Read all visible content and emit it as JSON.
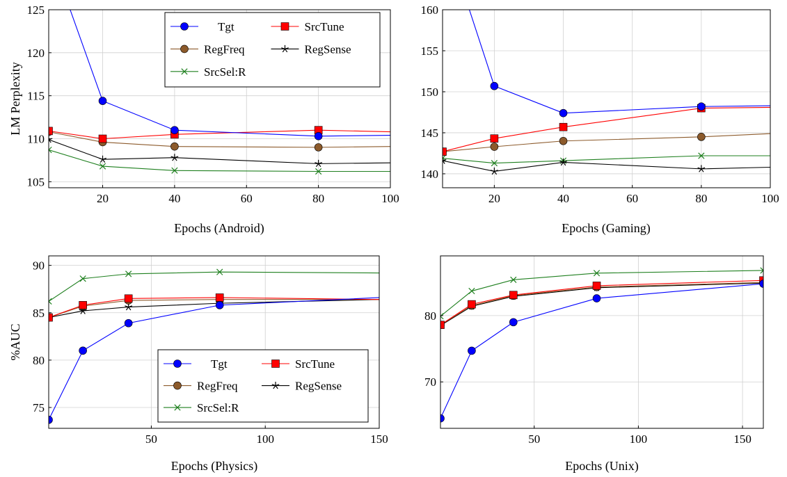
{
  "chart_data": [
    {
      "type": "line",
      "id": "android",
      "xlabel": "Epochs (Android)",
      "ylabel": "LM Perplexity",
      "xlim": [
        5,
        100
      ],
      "ylim": [
        104.3,
        125
      ],
      "xticks": [
        20,
        40,
        60,
        80,
        100
      ],
      "yticks": [
        105,
        110,
        115,
        120,
        125
      ],
      "grid": true,
      "legend": "top-right",
      "series": [
        {
          "name": "Tgt",
          "x": [
            5,
            20,
            40,
            80,
            100
          ],
          "y": [
            132,
            114.4,
            111.0,
            110.3,
            110.4
          ]
        },
        {
          "name": "SrcTune",
          "x": [
            5,
            20,
            40,
            80,
            100
          ],
          "y": [
            110.9,
            110.0,
            110.5,
            111.0,
            110.8
          ]
        },
        {
          "name": "RegFreq",
          "x": [
            5,
            20,
            40,
            80,
            100
          ],
          "y": [
            110.8,
            109.6,
            109.1,
            109.0,
            109.1
          ]
        },
        {
          "name": "RegSense",
          "x": [
            5,
            20,
            40,
            80,
            100
          ],
          "y": [
            109.9,
            107.6,
            107.8,
            107.1,
            107.2
          ]
        },
        {
          "name": "SrcSel:R",
          "x": [
            5,
            20,
            40,
            80,
            100
          ],
          "y": [
            108.7,
            106.8,
            106.3,
            106.2,
            106.2
          ]
        }
      ]
    },
    {
      "type": "line",
      "id": "gaming",
      "xlabel": "Epochs (Gaming)",
      "ylabel": "",
      "xlim": [
        5,
        100
      ],
      "ylim": [
        138.3,
        160
      ],
      "xticks": [
        20,
        40,
        60,
        80,
        100
      ],
      "yticks": [
        140,
        145,
        150,
        155,
        160
      ],
      "grid": true,
      "legend": "none",
      "series": [
        {
          "name": "Tgt",
          "x": [
            5,
            20,
            40,
            80,
            100
          ],
          "y": [
            170,
            150.7,
            147.4,
            148.2,
            148.3
          ]
        },
        {
          "name": "SrcTune",
          "x": [
            5,
            20,
            40,
            80,
            100
          ],
          "y": [
            142.7,
            144.3,
            145.7,
            148.0,
            148.1
          ]
        },
        {
          "name": "RegFreq",
          "x": [
            5,
            20,
            40,
            80,
            100
          ],
          "y": [
            142.7,
            143.3,
            144.0,
            144.5,
            144.9
          ]
        },
        {
          "name": "RegSense",
          "x": [
            5,
            20,
            40,
            80,
            100
          ],
          "y": [
            141.6,
            140.3,
            141.4,
            140.6,
            140.8
          ]
        },
        {
          "name": "SrcSel:R",
          "x": [
            5,
            20,
            40,
            80,
            100
          ],
          "y": [
            141.9,
            141.3,
            141.6,
            142.2,
            142.2
          ]
        }
      ]
    },
    {
      "type": "line",
      "id": "physics",
      "xlabel": "Epochs (Physics)",
      "ylabel": "%AUC",
      "xlim": [
        5,
        150
      ],
      "ylim": [
        72.8,
        91
      ],
      "xticks": [
        50,
        100,
        150
      ],
      "yticks": [
        75,
        80,
        85,
        90
      ],
      "grid": true,
      "legend": "bottom-right",
      "series": [
        {
          "name": "Tgt",
          "x": [
            5,
            20,
            40,
            80,
            150
          ],
          "y": [
            73.7,
            81.0,
            83.9,
            85.8,
            86.6
          ]
        },
        {
          "name": "SrcTune",
          "x": [
            5,
            20,
            40,
            80,
            150
          ],
          "y": [
            84.5,
            85.8,
            86.5,
            86.6,
            86.4
          ]
        },
        {
          "name": "RegFreq",
          "x": [
            5,
            20,
            40,
            80,
            150
          ],
          "y": [
            84.5,
            85.7,
            86.3,
            86.4,
            86.4
          ]
        },
        {
          "name": "RegSense",
          "x": [
            5,
            20,
            40,
            80,
            150
          ],
          "y": [
            84.5,
            85.2,
            85.6,
            86.0,
            86.4
          ]
        },
        {
          "name": "SrcSel:R",
          "x": [
            5,
            20,
            40,
            80,
            150
          ],
          "y": [
            86.2,
            88.6,
            89.1,
            89.3,
            89.2
          ]
        }
      ]
    },
    {
      "type": "line",
      "id": "unix",
      "xlabel": "Epochs (Unix)",
      "ylabel": "",
      "xlim": [
        5,
        160
      ],
      "ylim": [
        63,
        89
      ],
      "xticks": [
        50,
        100,
        150
      ],
      "yticks": [
        70,
        80
      ],
      "grid": true,
      "legend": "none",
      "series": [
        {
          "name": "Tgt",
          "x": [
            5,
            20,
            40,
            80,
            160
          ],
          "y": [
            64.5,
            74.7,
            79.0,
            82.6,
            84.8
          ]
        },
        {
          "name": "SrcTune",
          "x": [
            5,
            20,
            40,
            80,
            160
          ],
          "y": [
            78.6,
            81.7,
            83.1,
            84.5,
            85.3
          ]
        },
        {
          "name": "RegFreq",
          "x": [
            5,
            20,
            40,
            80,
            160
          ],
          "y": [
            78.6,
            81.5,
            83.0,
            84.3,
            85.0
          ]
        },
        {
          "name": "RegSense",
          "x": [
            5,
            20,
            40,
            80,
            160
          ],
          "y": [
            78.5,
            81.4,
            82.9,
            84.2,
            84.9
          ]
        },
        {
          "name": "SrcSel:R",
          "x": [
            5,
            20,
            40,
            80,
            160
          ],
          "y": [
            79.9,
            83.7,
            85.4,
            86.4,
            86.8
          ]
        }
      ]
    }
  ],
  "styles": {
    "Tgt": {
      "color": "#0000ff",
      "marker": "circle"
    },
    "SrcTune": {
      "color": "#ff0000",
      "marker": "square"
    },
    "RegFreq": {
      "color": "#8c5a2b",
      "marker": "circle"
    },
    "RegSense": {
      "color": "#000000",
      "marker": "star"
    },
    "SrcSel:R": {
      "color": "#1e7f1e",
      "marker": "cross"
    }
  }
}
